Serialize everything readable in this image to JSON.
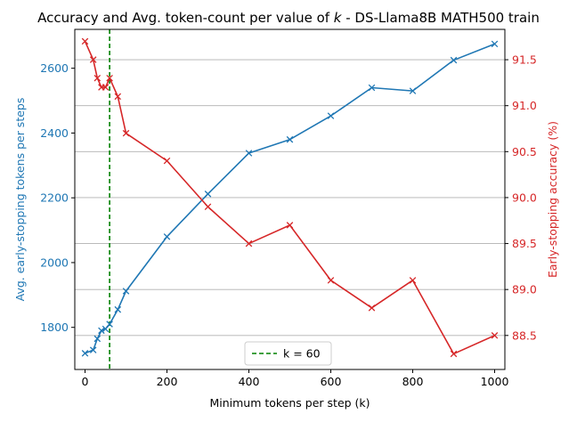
{
  "chart_data": {
    "type": "line",
    "title": "Accuracy and Avg. token-count per value of k - DS-Llama8B MATH500 train",
    "title_parts": [
      "Accuracy and Avg. token-count per value of ",
      "k",
      " - DS-Llama8B MATH500 train"
    ],
    "xlabel": "Minimum tokens per step (k)",
    "y1label": "Avg. early-stopping tokens per steps",
    "y2label": "Early-stopping accuracy (%)",
    "xlim": [
      -25,
      1025
    ],
    "y1lim": [
      1670,
      2720
    ],
    "y2lim": [
      88.13,
      91.83
    ],
    "x_ticks": [
      0,
      200,
      400,
      600,
      800,
      1000
    ],
    "y1_ticks": [
      1800,
      2000,
      2200,
      2400,
      2600
    ],
    "y2_ticks": [
      "88.5",
      "89.0",
      "89.5",
      "90.0",
      "90.5",
      "91.0",
      "91.5"
    ],
    "grid": "horizontal (right axis)",
    "legend_position": "bottom-center",
    "colors": {
      "tokens": "#1f77b4",
      "accuracy": "#d62728",
      "vline": "#008000"
    },
    "vline": {
      "x": 60,
      "label": "k = 60"
    },
    "series": [
      {
        "axis": "left",
        "color": "#1f77b4",
        "marker": "x",
        "x": [
          0,
          20,
          30,
          40,
          50,
          60,
          80,
          100,
          200,
          300,
          400,
          500,
          600,
          700,
          800,
          900,
          1000
        ],
        "values": [
          1720,
          1730,
          1765,
          1790,
          1795,
          1810,
          1855,
          1912,
          2080,
          2212,
          2338,
          2380,
          2453,
          2540,
          2530,
          2625,
          2675
        ]
      },
      {
        "axis": "right",
        "color": "#d62728",
        "marker": "x",
        "x": [
          0,
          20,
          30,
          40,
          50,
          60,
          80,
          100,
          200,
          300,
          400,
          500,
          600,
          700,
          800,
          900,
          1000
        ],
        "values": [
          91.7,
          91.5,
          91.3,
          91.2,
          91.2,
          91.3,
          91.1,
          90.7,
          90.4,
          89.9,
          89.5,
          89.7,
          89.1,
          88.8,
          89.1,
          88.3,
          88.5
        ]
      }
    ]
  }
}
